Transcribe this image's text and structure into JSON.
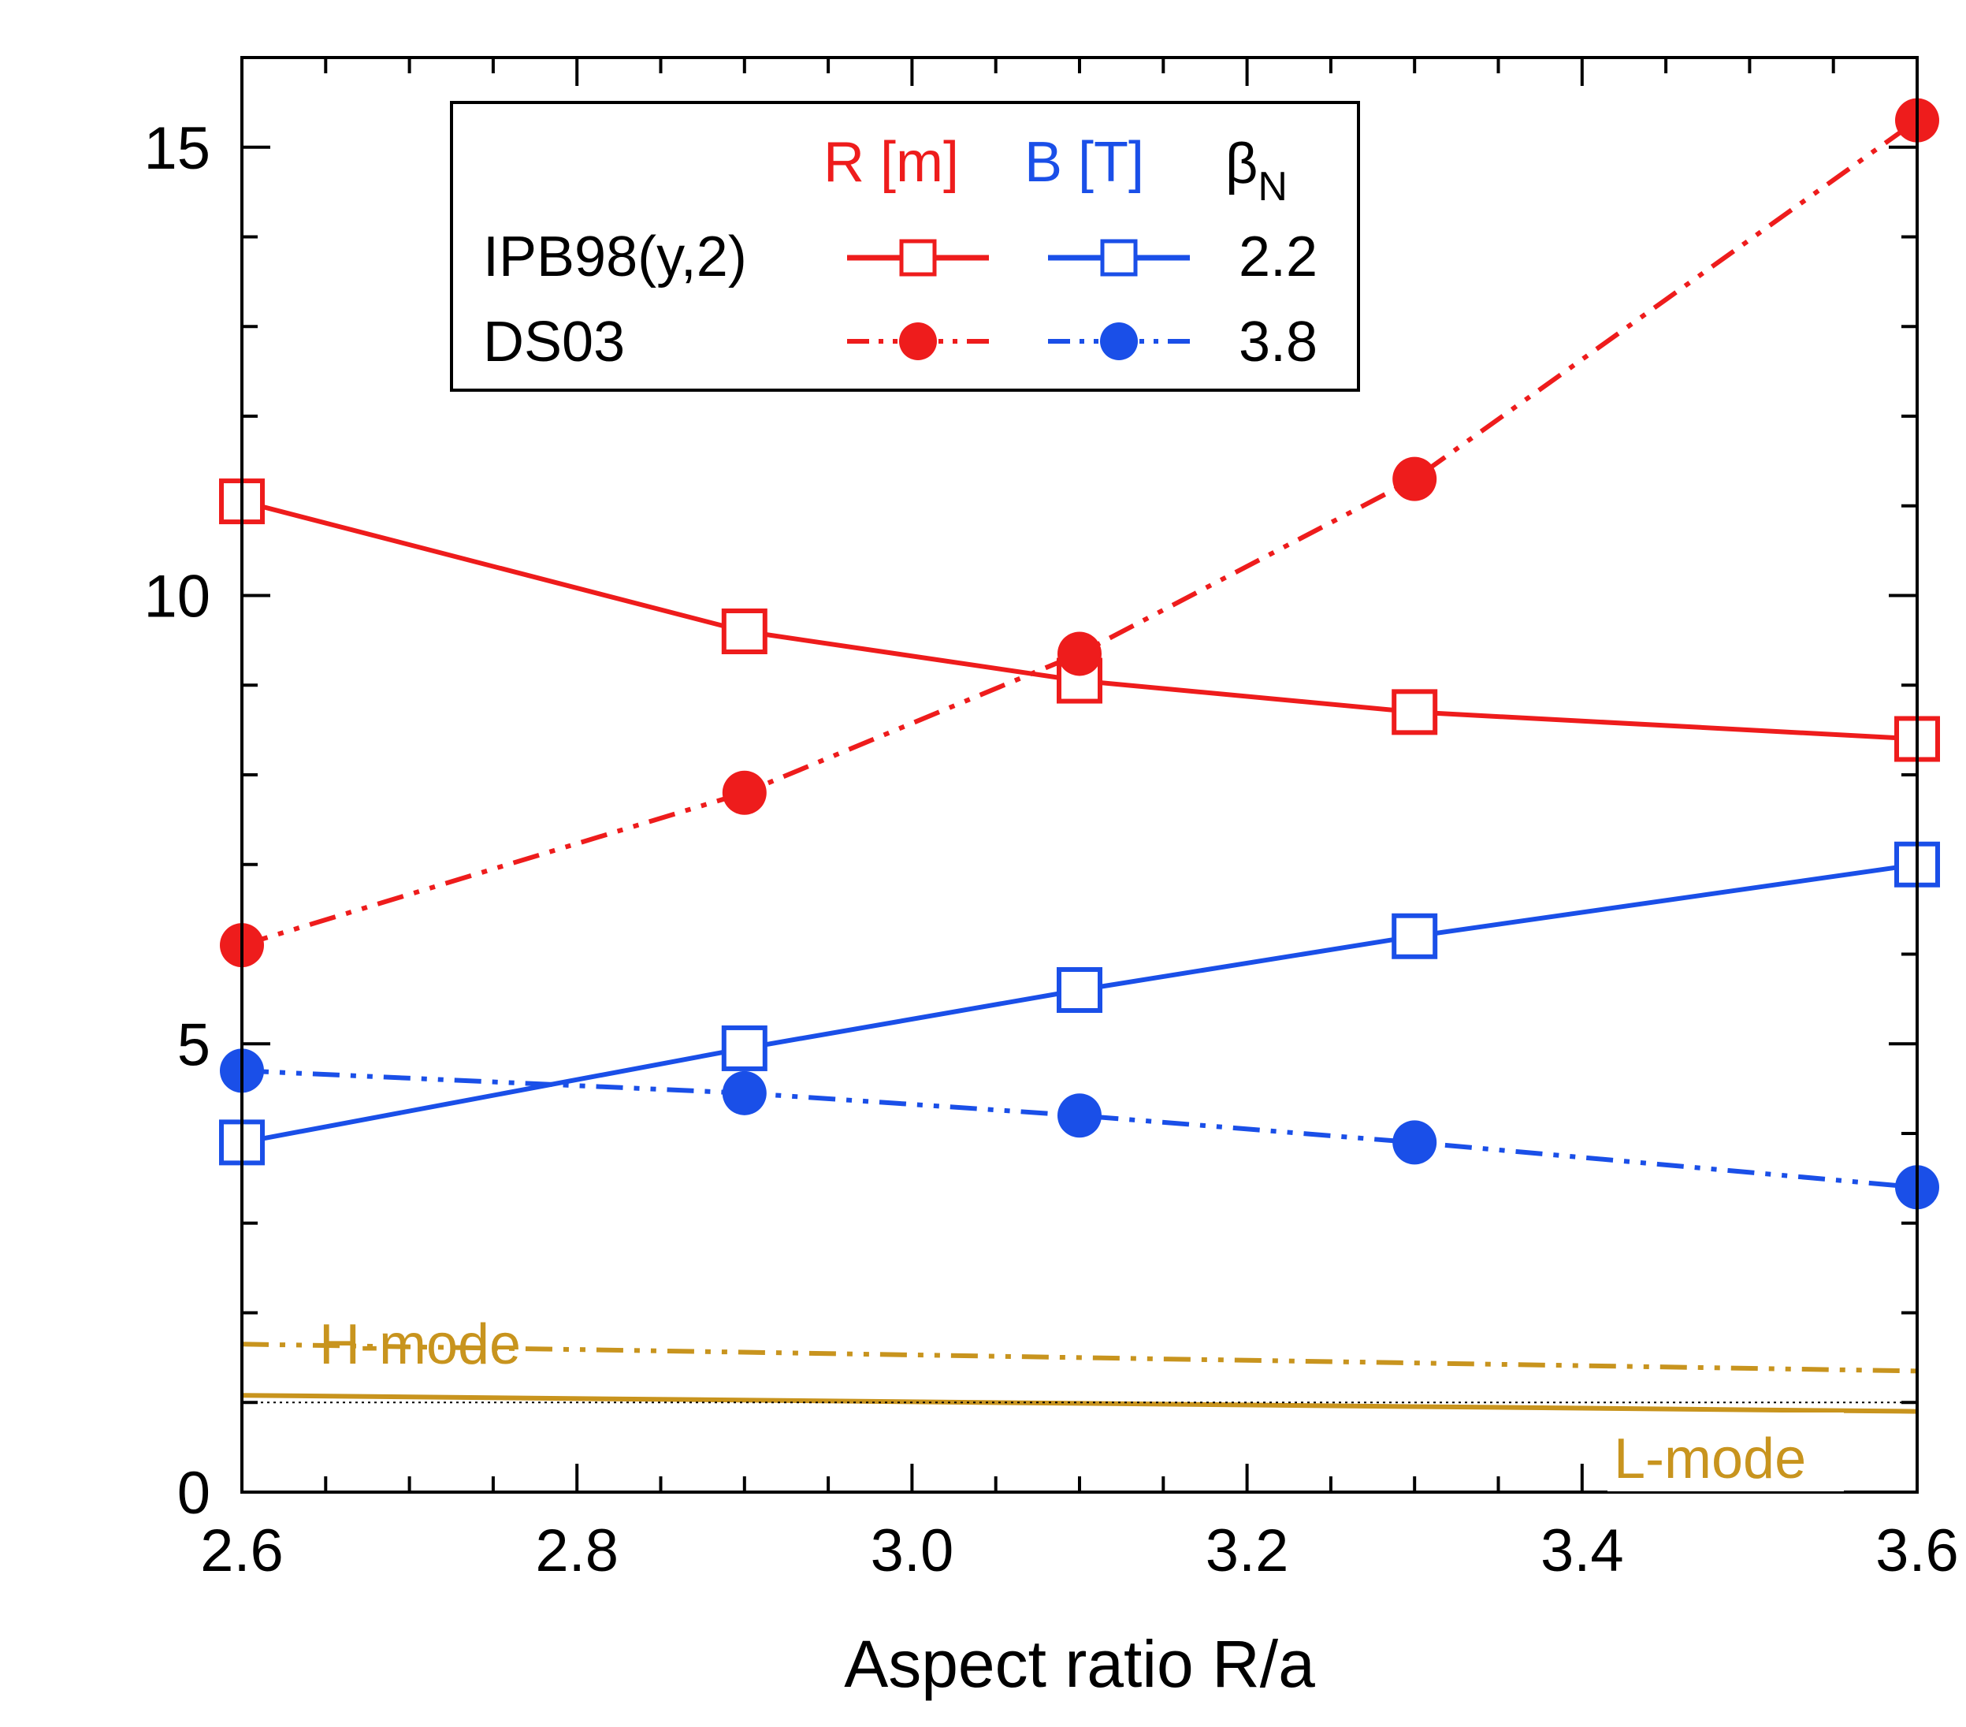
{
  "chart_data": {
    "type": "line",
    "xlabel": "Aspect ratio R/a",
    "ylabel": "",
    "xlim": [
      2.6,
      3.6
    ],
    "ylim": [
      0,
      16
    ],
    "x_ticks": [
      2.6,
      2.8,
      3.0,
      3.2,
      3.4,
      3.6
    ],
    "x_tick_labels": [
      "2.6",
      "2.8",
      "3.0",
      "3.2",
      "3.4",
      "3.6"
    ],
    "y_ticks": [
      0,
      5,
      10,
      15
    ],
    "y_tick_labels": [
      "0",
      "5",
      "10",
      "15"
    ],
    "x": [
      2.6,
      2.9,
      3.1,
      3.3,
      3.6
    ],
    "series": [
      {
        "key": "r_ipb",
        "values": [
          11.05,
          9.6,
          9.05,
          8.7,
          8.4
        ],
        "color": "#ee1c1c",
        "marker": "open-square",
        "dash": "solid"
      },
      {
        "key": "r_ds",
        "values": [
          6.1,
          7.8,
          9.35,
          11.3,
          15.3
        ],
        "color": "#ee1c1c",
        "marker": "filled-circle",
        "dash": "dash-dot-dot"
      },
      {
        "key": "b_ipb",
        "values": [
          3.9,
          4.95,
          5.6,
          6.2,
          7.0
        ],
        "color": "#1a4fe8",
        "marker": "open-square",
        "dash": "solid"
      },
      {
        "key": "b_ds",
        "values": [
          4.7,
          4.45,
          4.2,
          3.9,
          3.4
        ],
        "color": "#1a4fe8",
        "marker": "filled-circle",
        "dash": "dash-dot-dot"
      },
      {
        "key": "h_mode",
        "name": "H-mode",
        "x": [
          2.6,
          3.6
        ],
        "values": [
          1.65,
          1.35
        ],
        "color": "#c8941e",
        "marker": "none",
        "dash": "dash-dot-dot"
      },
      {
        "key": "l_mode",
        "name": "L-mode",
        "x": [
          2.6,
          3.6
        ],
        "values": [
          1.08,
          0.9
        ],
        "color": "#c8941e",
        "marker": "none",
        "dash": "solid"
      },
      {
        "key": "unity",
        "x": [
          2.6,
          3.6
        ],
        "values": [
          1.0,
          1.0
        ],
        "color": "#000000",
        "marker": "none",
        "dash": "dotted"
      }
    ],
    "legend": {
      "placement": "top-left",
      "header": {
        "r": "R [m]",
        "b": "B [T]",
        "beta_symbol": "β",
        "beta_sub": "N"
      },
      "rows": [
        {
          "label": "IPB98(y,2)",
          "beta": "2.2"
        },
        {
          "label": "DS03",
          "beta": "3.8"
        }
      ]
    },
    "colors": {
      "red": "#ee1c1c",
      "blue": "#1a4fe8",
      "gold": "#c8941e"
    },
    "grid": false
  }
}
